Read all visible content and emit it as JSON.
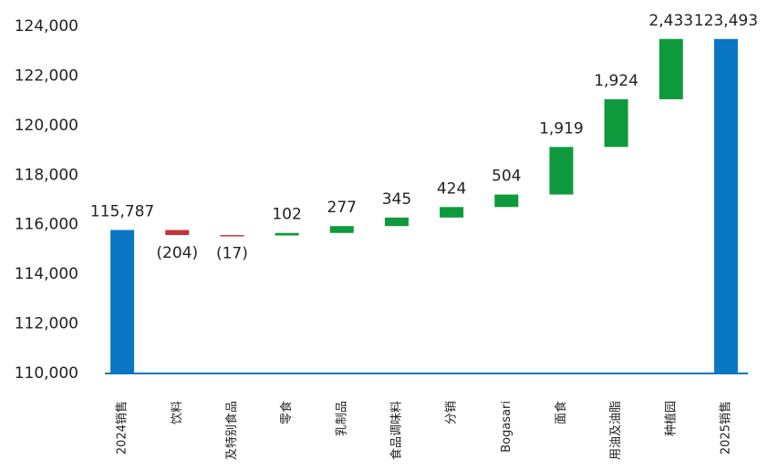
{
  "chart_data": {
    "type": "waterfall",
    "categories": [
      "2024销售",
      "饮料",
      "及特别食品",
      "零食",
      "乳制品",
      "食品调味料",
      "分销",
      "Bogasari",
      "面食",
      "用油及油脂",
      "种植园",
      "2025销售"
    ],
    "measure": [
      "absolute",
      "relative",
      "relative",
      "relative",
      "relative",
      "relative",
      "relative",
      "relative",
      "relative",
      "relative",
      "relative",
      "total"
    ],
    "values": [
      115787,
      -204,
      -17,
      102,
      277,
      345,
      424,
      504,
      1919,
      1924,
      2433,
      123493
    ],
    "value_labels": [
      "115,787",
      "(204)",
      "(17)",
      "102",
      "277",
      "345",
      "424",
      "504",
      "1,919",
      "1,924",
      "2,433",
      "123,493"
    ],
    "colors": {
      "total": "#0a77c4",
      "increase": "#0e9a3c",
      "decrease": "#c0363a"
    },
    "ylim": [
      110000,
      124000
    ],
    "yticks": [
      {
        "value": 110000,
        "label": "110,000"
      },
      {
        "value": 112000,
        "label": "112,000"
      },
      {
        "value": 114000,
        "label": "114,000"
      },
      {
        "value": 116000,
        "label": "116,000"
      },
      {
        "value": 118000,
        "label": "118,000"
      },
      {
        "value": 120000,
        "label": "120,000"
      },
      {
        "value": 122000,
        "label": "122,000"
      },
      {
        "value": 124000,
        "label": "124,000"
      }
    ]
  }
}
